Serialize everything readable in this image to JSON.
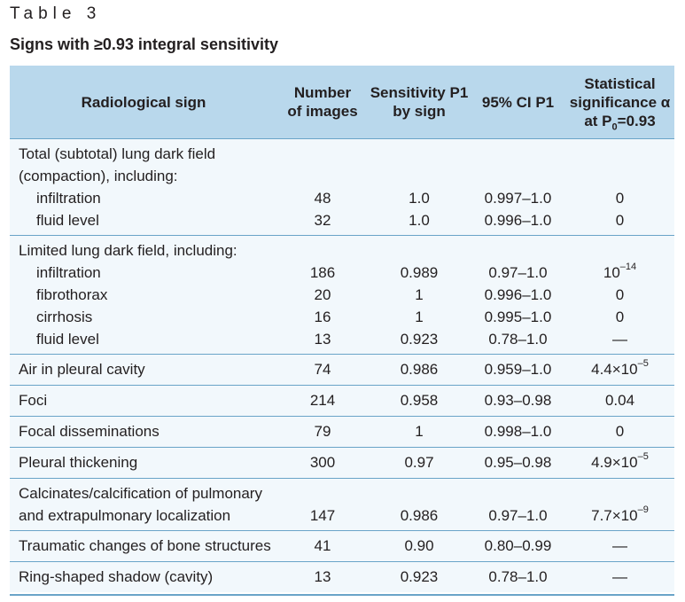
{
  "caption": "Table 3",
  "title": "Signs with ≥0.93 integral sensitivity",
  "header": {
    "col1": "Radiological sign",
    "col2_line1": "Number",
    "col2_line2": "of images",
    "col3_line1": "Sensitivity P1",
    "col3_line2": "by sign",
    "col4": "95% CI P1",
    "col5_line1": "Statistical",
    "col5_line2": "significance α",
    "col5_line3_pre": "at P",
    "col5_line3_sub": "0",
    "col5_line3_post": "=0.93"
  },
  "groups": [
    {
      "rows": [
        {
          "sign": "Total (subtotal) lung dark field",
          "n": "",
          "sens": "",
          "ci": "",
          "sig": "",
          "sub": false
        },
        {
          "sign": "(compaction), including:",
          "n": "",
          "sens": "",
          "ci": "",
          "sig": "",
          "sub": false
        },
        {
          "sign": "infiltration",
          "n": "48",
          "sens": "1.0",
          "ci": "0.997–1.0",
          "sig": "0",
          "sub": true
        },
        {
          "sign": "fluid level",
          "n": "32",
          "sens": "1.0",
          "ci": "0.996–1.0",
          "sig": "0",
          "sub": true
        }
      ]
    },
    {
      "rows": [
        {
          "sign": "Limited lung dark field, including:",
          "n": "",
          "sens": "",
          "ci": "",
          "sig": "",
          "sub": false
        },
        {
          "sign": "infiltration",
          "n": "186",
          "sens": "0.989",
          "ci": "0.97–1.0",
          "sig": "10",
          "sig_sup": "–14",
          "sub": true
        },
        {
          "sign": "fibrothorax",
          "n": "20",
          "sens": "1",
          "ci": "0.996–1.0",
          "sig": "0",
          "sub": true
        },
        {
          "sign": "cirrhosis",
          "n": "16",
          "sens": "1",
          "ci": "0.995–1.0",
          "sig": "0",
          "sub": true
        },
        {
          "sign": "fluid level",
          "n": "13",
          "sens": "0.923",
          "ci": "0.78–1.0",
          "sig": "—",
          "sub": true
        }
      ]
    },
    {
      "rows": [
        {
          "sign": "Air in pleural cavity",
          "n": "74",
          "sens": "0.986",
          "ci": "0.959–1.0",
          "sig": "4.4×10",
          "sig_sup": "–5",
          "sub": false
        }
      ]
    },
    {
      "rows": [
        {
          "sign": "Foci",
          "n": "214",
          "sens": "0.958",
          "ci": "0.93–0.98",
          "sig": "0.04",
          "sub": false
        }
      ]
    },
    {
      "rows": [
        {
          "sign": "Focal disseminations",
          "n": "79",
          "sens": "1",
          "ci": "0.998–1.0",
          "sig": "0",
          "sub": false
        }
      ]
    },
    {
      "rows": [
        {
          "sign": "Pleural thickening",
          "n": "300",
          "sens": "0.97",
          "ci": "0.95–0.98",
          "sig": "4.9×10",
          "sig_sup": "–5",
          "sub": false
        }
      ]
    },
    {
      "rows": [
        {
          "sign": "Calcinates/calcification of pulmonary",
          "n": "",
          "sens": "",
          "ci": "",
          "sig": "",
          "sub": false
        },
        {
          "sign": "and extrapulmonary localization",
          "n": "147",
          "sens": "0.986",
          "ci": "0.97–1.0",
          "sig": "7.7×10",
          "sig_sup": "–9",
          "sub": false
        }
      ]
    },
    {
      "rows": [
        {
          "sign": "Traumatic changes of bone structures",
          "n": "41",
          "sens": "0.90",
          "ci": "0.80–0.99",
          "sig": "—",
          "sub": false
        }
      ]
    },
    {
      "rows": [
        {
          "sign": "Ring-shaped shadow (cavity)",
          "n": "13",
          "sens": "0.923",
          "ci": "0.78–1.0",
          "sig": "—",
          "sub": false
        }
      ]
    }
  ],
  "colors": {
    "header_bg": "#b9d8ec",
    "row_bg": "#f2f8fc",
    "rule": "#6aa4c8",
    "text": "#231f20"
  }
}
